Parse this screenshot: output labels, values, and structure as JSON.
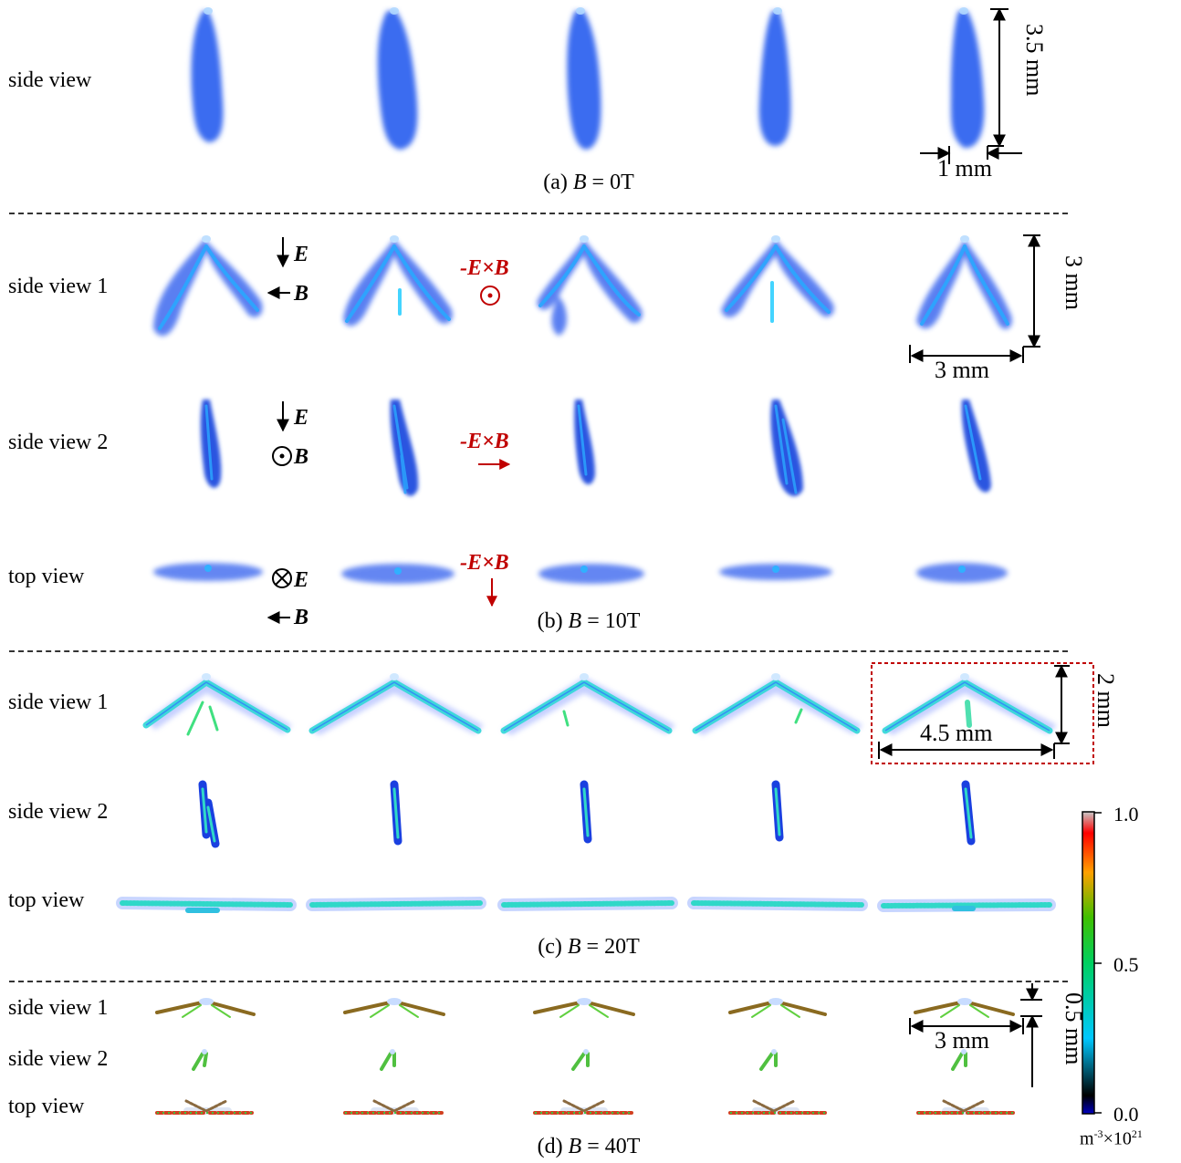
{
  "rows": {
    "a_side": "side view",
    "b_side1": "side view 1",
    "b_side2": "side view 2",
    "b_top": "top view",
    "c_side1": "side view 1",
    "c_side2": "side view 2",
    "c_top": "top view",
    "d_side1": "side view 1",
    "d_side2": "side view 2",
    "d_top": "top view"
  },
  "captions": {
    "a_prefix": "(a) ",
    "a_var": "B",
    "a_rest": " = 0T",
    "b_prefix": "(b) ",
    "b_var": "B",
    "b_rest": " = 10T",
    "c_prefix": "(c) ",
    "c_var": "B",
    "c_rest": " = 20T",
    "d_prefix": "(d) ",
    "d_var": "B",
    "d_rest": " = 40T"
  },
  "fields": {
    "E": "E",
    "B": "B",
    "exb": "-E×B"
  },
  "dimensions": {
    "a_height": "3.5 mm",
    "a_width": "1 mm",
    "b_height": "3 mm",
    "b_width": "3 mm",
    "c_height": "2 mm",
    "c_width": "4.5 mm",
    "d_height": "0.5 mm",
    "d_width": "3 mm"
  },
  "colorbar": {
    "max": "1.0",
    "mid": "0.5",
    "min": "0.0",
    "unit": "m-3×1021",
    "unit_base": "m",
    "unit_exp1": "-3",
    "unit_times": "×10",
    "unit_exp2": "21",
    "colors": [
      "#0a0a8a",
      "#000000",
      "#00b0ff",
      "#00e070",
      "#40d000",
      "#ff9000",
      "#ff0000",
      "#c0c0c0"
    ]
  },
  "colors": {
    "plasma_a": "#3a6cf0",
    "accent_red": "#c00000"
  }
}
